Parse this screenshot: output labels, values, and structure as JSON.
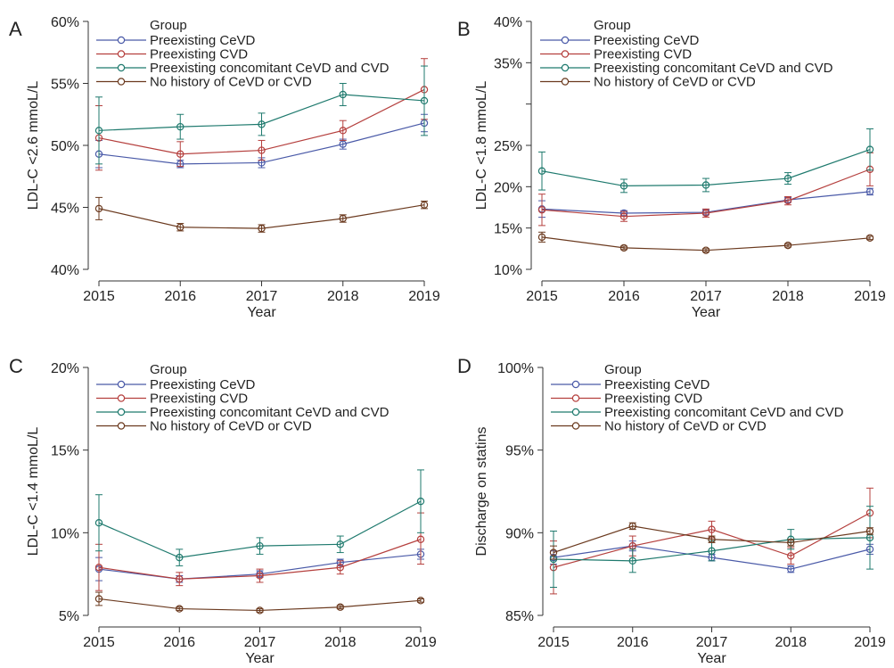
{
  "chart_data": [
    {
      "panel_label": "A",
      "type": "line",
      "title": "",
      "xlabel": "Year",
      "ylabel": "LDL-C <2.6 mmoL/L",
      "x": [
        "2015",
        "2016",
        "2017",
        "2018",
        "2019"
      ],
      "xlim": [
        2015,
        2019
      ],
      "ylim": [
        40,
        60
      ],
      "yticks": [
        40,
        45,
        50,
        55,
        60
      ],
      "ytick_labels": [
        "40%",
        "45%",
        "50%",
        "55%",
        "60%"
      ],
      "grid": false,
      "legend": {
        "title": "Group",
        "placement": "top-left"
      },
      "series": [
        {
          "name": "Preexisting CeVD",
          "color": "#4a5aa8",
          "values": [
            49.3,
            48.5,
            48.6,
            50.1,
            51.8
          ],
          "ci_low": [
            48.2,
            48.2,
            48.2,
            49.7,
            51.1
          ],
          "ci_high": [
            50.4,
            48.8,
            49.0,
            50.5,
            52.5
          ]
        },
        {
          "name": "Preexisting CVD",
          "color": "#b5403e",
          "values": [
            50.6,
            49.3,
            49.6,
            51.2,
            54.5
          ],
          "ci_low": [
            48.0,
            48.3,
            48.8,
            50.4,
            52.1
          ],
          "ci_high": [
            53.2,
            50.3,
            50.4,
            52.0,
            57.0
          ]
        },
        {
          "name": "Preexisting concomitant CeVD and CVD",
          "color": "#1f7a6e",
          "values": [
            51.2,
            51.5,
            51.7,
            54.1,
            53.6
          ],
          "ci_low": [
            48.5,
            50.5,
            50.8,
            53.2,
            50.8
          ],
          "ci_high": [
            53.9,
            52.5,
            52.6,
            55.0,
            56.4
          ]
        },
        {
          "name": "No history of CeVD or CVD",
          "color": "#6b3a1f",
          "values": [
            44.9,
            43.4,
            43.3,
            44.1,
            45.2
          ],
          "ci_low": [
            44.0,
            43.1,
            43.0,
            43.8,
            44.9
          ],
          "ci_high": [
            45.8,
            43.7,
            43.6,
            44.4,
            45.5
          ]
        }
      ]
    },
    {
      "panel_label": "B",
      "type": "line",
      "title": "",
      "xlabel": "Year",
      "ylabel": "LDL-C <1.8 mmoL/L",
      "x": [
        "2015",
        "2016",
        "2017",
        "2018",
        "2019"
      ],
      "xlim": [
        2015,
        2019
      ],
      "ylim": [
        10,
        40
      ],
      "yticks": [
        10,
        15,
        20,
        25,
        30,
        35,
        40
      ],
      "ytick_labels": [
        "10%",
        "15%",
        "20%",
        "25%",
        "",
        "35%",
        "40%"
      ],
      "grid": false,
      "legend": {
        "title": "Group",
        "placement": "top-left"
      },
      "series": [
        {
          "name": "Preexisting CeVD",
          "color": "#4a5aa8",
          "values": [
            17.3,
            16.8,
            16.9,
            18.4,
            19.4
          ],
          "ci_low": [
            16.3,
            16.5,
            16.6,
            18.1,
            19.0
          ],
          "ci_high": [
            18.3,
            17.1,
            17.2,
            18.7,
            19.8
          ]
        },
        {
          "name": "Preexisting CVD",
          "color": "#b5403e",
          "values": [
            17.2,
            16.4,
            16.8,
            18.3,
            22.1
          ],
          "ci_low": [
            15.3,
            15.8,
            16.3,
            17.8,
            20.1
          ],
          "ci_high": [
            19.1,
            17.0,
            17.3,
            18.8,
            24.1
          ]
        },
        {
          "name": "Preexisting concomitant CeVD and CVD",
          "color": "#1f7a6e",
          "values": [
            21.9,
            20.1,
            20.2,
            21.0,
            24.5
          ],
          "ci_low": [
            19.6,
            19.3,
            19.4,
            20.3,
            22.0
          ],
          "ci_high": [
            24.2,
            20.9,
            21.0,
            21.7,
            27.0
          ]
        },
        {
          "name": "No history of CeVD or CVD",
          "color": "#6b3a1f",
          "values": [
            13.9,
            12.6,
            12.3,
            12.9,
            13.8
          ],
          "ci_low": [
            13.3,
            12.4,
            12.1,
            12.7,
            13.6
          ],
          "ci_high": [
            14.5,
            12.8,
            12.5,
            13.1,
            14.0
          ]
        }
      ]
    },
    {
      "panel_label": "C",
      "type": "line",
      "title": "",
      "xlabel": "Year",
      "ylabel": "LDL-C <1.4 mmoL/L",
      "x": [
        "2015",
        "2016",
        "2017",
        "2018",
        "2019"
      ],
      "xlim": [
        2015,
        2019
      ],
      "ylim": [
        5,
        20
      ],
      "yticks": [
        5,
        10,
        15,
        20
      ],
      "ytick_labels": [
        "5%",
        "10%",
        "15%",
        "20%"
      ],
      "grid": false,
      "legend": {
        "title": "Group",
        "placement": "top-left"
      },
      "series": [
        {
          "name": "Preexisting CeVD",
          "color": "#4a5aa8",
          "values": [
            7.8,
            7.2,
            7.5,
            8.2,
            8.7
          ],
          "ci_low": [
            7.1,
            7.0,
            7.3,
            8.0,
            8.4
          ],
          "ci_high": [
            8.5,
            7.4,
            7.7,
            8.4,
            9.0
          ]
        },
        {
          "name": "Preexisting CVD",
          "color": "#b5403e",
          "values": [
            7.9,
            7.2,
            7.4,
            7.9,
            9.6
          ],
          "ci_low": [
            6.5,
            6.8,
            7.0,
            7.5,
            8.1
          ],
          "ci_high": [
            9.3,
            7.6,
            7.8,
            8.3,
            11.2
          ]
        },
        {
          "name": "Preexisting concomitant CeVD and CVD",
          "color": "#1f7a6e",
          "values": [
            10.6,
            8.5,
            9.2,
            9.3,
            11.9
          ],
          "ci_low": [
            8.9,
            8.0,
            8.7,
            8.8,
            10.0
          ],
          "ci_high": [
            12.3,
            9.0,
            9.7,
            9.8,
            13.8
          ]
        },
        {
          "name": "No history of CeVD or CVD",
          "color": "#6b3a1f",
          "values": [
            6.0,
            5.4,
            5.3,
            5.5,
            5.9
          ],
          "ci_low": [
            5.6,
            5.3,
            5.2,
            5.4,
            5.8
          ],
          "ci_high": [
            6.4,
            5.5,
            5.4,
            5.6,
            6.0
          ]
        }
      ]
    },
    {
      "panel_label": "D",
      "type": "line",
      "title": "",
      "xlabel": "Year",
      "ylabel": "Discharge on statins",
      "x": [
        "2015",
        "2016",
        "2017",
        "2018",
        "2019"
      ],
      "xlim": [
        2015,
        2019
      ],
      "ylim": [
        85,
        100
      ],
      "yticks": [
        85,
        90,
        95,
        100
      ],
      "ytick_labels": [
        "85%",
        "90%",
        "95%",
        "100%"
      ],
      "grid": false,
      "legend": {
        "title": "Group",
        "placement": "top-left"
      },
      "series": [
        {
          "name": "Preexisting CeVD",
          "color": "#4a5aa8",
          "values": [
            88.5,
            89.2,
            88.5,
            87.8,
            89.0
          ],
          "ci_low": [
            88.1,
            88.9,
            88.3,
            87.6,
            88.7
          ],
          "ci_high": [
            88.9,
            89.5,
            88.7,
            88.0,
            89.3
          ]
        },
        {
          "name": "Preexisting CVD",
          "color": "#b5403e",
          "values": [
            87.9,
            89.2,
            90.2,
            88.6,
            91.2
          ],
          "ci_low": [
            86.3,
            88.6,
            89.7,
            88.1,
            89.7
          ],
          "ci_high": [
            89.5,
            89.8,
            90.7,
            89.1,
            92.7
          ]
        },
        {
          "name": "Preexisting concomitant CeVD and CVD",
          "color": "#1f7a6e",
          "values": [
            88.4,
            88.3,
            88.9,
            89.6,
            89.7
          ],
          "ci_low": [
            86.7,
            87.6,
            88.3,
            89.0,
            87.8
          ],
          "ci_high": [
            90.1,
            89.0,
            89.5,
            90.2,
            91.6
          ]
        },
        {
          "name": "No history of CeVD or CVD",
          "color": "#6b3a1f",
          "values": [
            88.8,
            90.4,
            89.6,
            89.4,
            90.1
          ],
          "ci_low": [
            88.4,
            90.2,
            89.4,
            89.2,
            89.9
          ],
          "ci_high": [
            89.2,
            90.6,
            89.8,
            89.6,
            90.3
          ]
        }
      ]
    }
  ]
}
